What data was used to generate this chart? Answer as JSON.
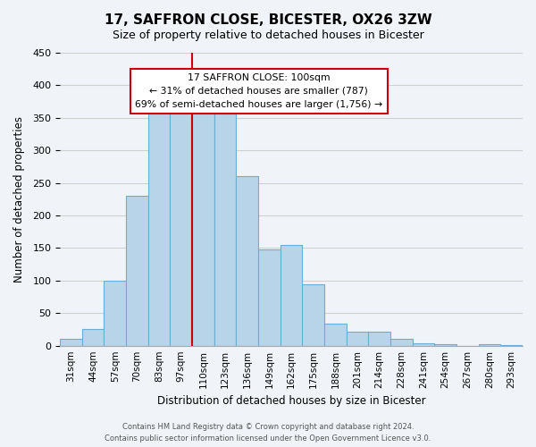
{
  "title": "17, SAFFRON CLOSE, BICESTER, OX26 3ZW",
  "subtitle": "Size of property relative to detached houses in Bicester",
  "xlabel": "Distribution of detached houses by size in Bicester",
  "ylabel": "Number of detached properties",
  "footer_lines": [
    "Contains HM Land Registry data © Crown copyright and database right 2024.",
    "Contains public sector information licensed under the Open Government Licence v3.0."
  ],
  "bin_labels": [
    "31sqm",
    "44sqm",
    "57sqm",
    "70sqm",
    "83sqm",
    "97sqm",
    "110sqm",
    "123sqm",
    "136sqm",
    "149sqm",
    "162sqm",
    "175sqm",
    "188sqm",
    "201sqm",
    "214sqm",
    "228sqm",
    "241sqm",
    "254sqm",
    "267sqm",
    "280sqm",
    "293sqm"
  ],
  "bar_heights": [
    10,
    25,
    100,
    230,
    365,
    375,
    375,
    357,
    260,
    148,
    155,
    95,
    34,
    22,
    22,
    10,
    3,
    2,
    0,
    2,
    1
  ],
  "bar_color": "#b8d4e8",
  "bar_edge_color": "#6aaed6",
  "annotation_line_index": 5,
  "annotation_text_line1": "17 SAFFRON CLOSE: 100sqm",
  "annotation_text_line2": "← 31% of detached houses are smaller (787)",
  "annotation_text_line3": "69% of semi-detached houses are larger (1,756) →",
  "annotation_box_color": "#ffffff",
  "annotation_box_edge_color": "#cc0000",
  "vline_color": "#cc0000",
  "ylim": [
    0,
    450
  ],
  "grid_color": "#d0d0d0",
  "background_color": "#f0f4f8"
}
